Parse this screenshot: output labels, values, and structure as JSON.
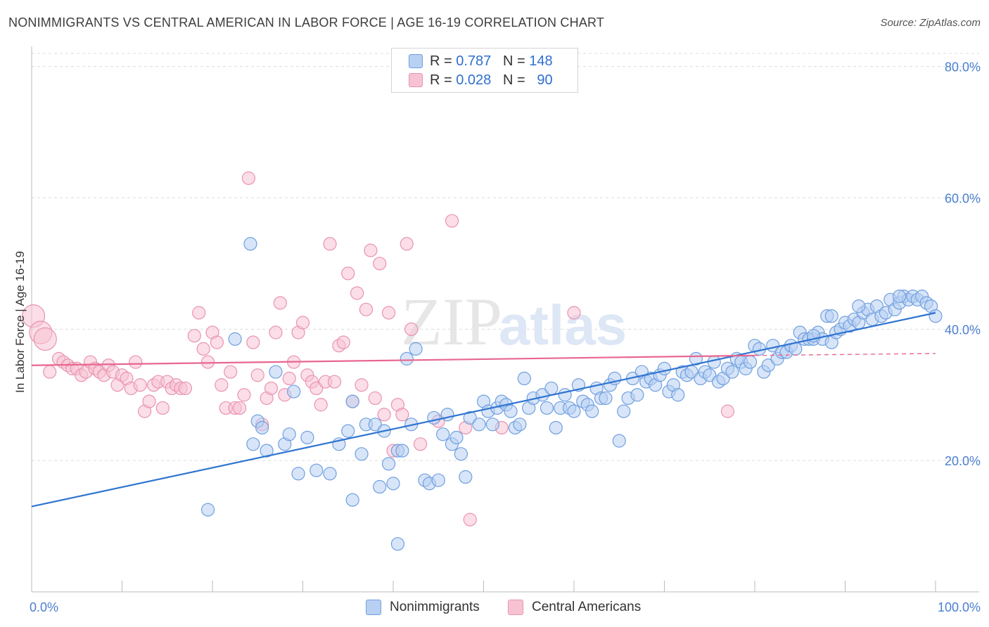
{
  "title": "NONIMMIGRANTS VS CENTRAL AMERICAN IN LABOR FORCE | AGE 16-19 CORRELATION CHART",
  "source": "Source: ZipAtlas.com",
  "watermark": {
    "zip": "ZIP",
    "atlas": "atlas"
  },
  "legend": {
    "rows": [
      {
        "r_label": "R =",
        "r_value": "0.787",
        "n_label": "N =",
        "n_value": "148"
      },
      {
        "r_label": "R =",
        "r_value": "0.028",
        "n_label": "N =",
        "n_value": "90"
      }
    ]
  },
  "colors": {
    "blue_fill": "#b8d0f2",
    "blue_stroke": "#6f9fe0",
    "blue_line": "#2f74d0",
    "pink_fill": "#f7c3d3",
    "pink_stroke": "#e993b0",
    "pink_line": "#e8668f",
    "grid": "#dcdcdc",
    "axis": "#bbbbbb"
  },
  "chart_data": {
    "type": "scatter",
    "title": "NONIMMIGRANTS VS CENTRAL AMERICAN IN LABOR FORCE | AGE 16-19 CORRELATION CHART",
    "xlabel": "",
    "ylabel": "In Labor Force | Age 16-19",
    "xlim": [
      0,
      100
    ],
    "ylim": [
      0,
      82
    ],
    "x_tick_labels": [
      "0.0%",
      "100.0%"
    ],
    "y_ticks": [
      20,
      40,
      60,
      80
    ],
    "y_tick_labels": [
      "20.0%",
      "40.0%",
      "60.0%",
      "80.0%"
    ],
    "grid": true,
    "legend_position": "top-center",
    "series": [
      {
        "name": "Nonimmigrants",
        "r": 0.787,
        "n": 148,
        "trend": {
          "x0": 0,
          "y0": 13.0,
          "x1": 100,
          "y1": 42.5
        },
        "points": [
          [
            19.5,
            12.5
          ],
          [
            22.5,
            38.5
          ],
          [
            24.2,
            53.0
          ],
          [
            25.0,
            26.0
          ],
          [
            25.5,
            25.0
          ],
          [
            24.5,
            22.5
          ],
          [
            26.0,
            21.5
          ],
          [
            27.0,
            33.5
          ],
          [
            28.0,
            22.5
          ],
          [
            28.5,
            24.0
          ],
          [
            29.0,
            30.5
          ],
          [
            29.5,
            18.0
          ],
          [
            30.5,
            23.5
          ],
          [
            31.5,
            18.5
          ],
          [
            33.0,
            18.0
          ],
          [
            34.0,
            22.5
          ],
          [
            35.0,
            24.5
          ],
          [
            35.5,
            14.0
          ],
          [
            35.5,
            29.0
          ],
          [
            36.5,
            21.0
          ],
          [
            37.0,
            25.5
          ],
          [
            38.0,
            25.5
          ],
          [
            38.5,
            16.0
          ],
          [
            39.0,
            24.5
          ],
          [
            39.5,
            19.5
          ],
          [
            40.0,
            16.5
          ],
          [
            40.5,
            21.5
          ],
          [
            41.0,
            21.5
          ],
          [
            41.5,
            35.5
          ],
          [
            42.0,
            25.5
          ],
          [
            42.5,
            37.0
          ],
          [
            43.5,
            17.0
          ],
          [
            44.0,
            16.5
          ],
          [
            44.5,
            26.5
          ],
          [
            45.0,
            17.0
          ],
          [
            45.5,
            24.0
          ],
          [
            46.0,
            27.0
          ],
          [
            46.5,
            22.5
          ],
          [
            47.0,
            23.5
          ],
          [
            47.5,
            21.0
          ],
          [
            48.0,
            17.5
          ],
          [
            48.5,
            26.5
          ],
          [
            49.5,
            25.5
          ],
          [
            50.0,
            29.0
          ],
          [
            50.5,
            27.5
          ],
          [
            51.0,
            25.5
          ],
          [
            51.5,
            28.0
          ],
          [
            52.0,
            29.0
          ],
          [
            52.5,
            28.5
          ],
          [
            53.0,
            27.5
          ],
          [
            53.5,
            25.0
          ],
          [
            54.0,
            25.5
          ],
          [
            54.5,
            32.5
          ],
          [
            55.0,
            28.0
          ],
          [
            55.5,
            29.5
          ],
          [
            56.5,
            30.0
          ],
          [
            57.0,
            28.0
          ],
          [
            57.5,
            31.0
          ],
          [
            58.0,
            25.0
          ],
          [
            58.5,
            28.0
          ],
          [
            59.0,
            30.0
          ],
          [
            59.5,
            28.0
          ],
          [
            60.0,
            27.5
          ],
          [
            60.5,
            31.5
          ],
          [
            61.0,
            29.0
          ],
          [
            61.5,
            28.5
          ],
          [
            62.0,
            27.5
          ],
          [
            62.5,
            31.0
          ],
          [
            63.0,
            29.5
          ],
          [
            63.5,
            29.5
          ],
          [
            64.0,
            31.5
          ],
          [
            64.5,
            32.5
          ],
          [
            65.0,
            23.0
          ],
          [
            65.5,
            27.5
          ],
          [
            66.0,
            29.5
          ],
          [
            66.5,
            32.5
          ],
          [
            67.0,
            30.0
          ],
          [
            67.5,
            33.5
          ],
          [
            68.0,
            32.0
          ],
          [
            68.5,
            32.5
          ],
          [
            69.0,
            31.5
          ],
          [
            69.5,
            33.0
          ],
          [
            70.0,
            34.0
          ],
          [
            70.5,
            30.5
          ],
          [
            71.0,
            31.5
          ],
          [
            71.5,
            30.0
          ],
          [
            72.0,
            33.5
          ],
          [
            72.5,
            33.0
          ],
          [
            73.0,
            33.5
          ],
          [
            73.5,
            35.5
          ],
          [
            74.0,
            32.5
          ],
          [
            74.5,
            33.5
          ],
          [
            75.0,
            33.0
          ],
          [
            75.5,
            35.0
          ],
          [
            76.0,
            32.0
          ],
          [
            76.5,
            32.5
          ],
          [
            77.0,
            34.0
          ],
          [
            77.5,
            33.5
          ],
          [
            78.0,
            35.5
          ],
          [
            78.5,
            35.0
          ],
          [
            79.0,
            34.0
          ],
          [
            79.5,
            35.0
          ],
          [
            80.0,
            37.5
          ],
          [
            80.5,
            37.0
          ],
          [
            81.0,
            33.5
          ],
          [
            81.5,
            34.5
          ],
          [
            82.0,
            37.5
          ],
          [
            82.5,
            35.5
          ],
          [
            83.0,
            36.5
          ],
          [
            83.5,
            36.5
          ],
          [
            84.0,
            37.5
          ],
          [
            84.5,
            37.0
          ],
          [
            85.0,
            39.5
          ],
          [
            85.5,
            38.5
          ],
          [
            86.0,
            38.5
          ],
          [
            86.5,
            38.5
          ],
          [
            87.0,
            39.5
          ],
          [
            87.5,
            38.5
          ],
          [
            88.0,
            42.0
          ],
          [
            88.5,
            38.0
          ],
          [
            89.0,
            39.5
          ],
          [
            89.5,
            40.0
          ],
          [
            90.0,
            41.0
          ],
          [
            90.5,
            40.5
          ],
          [
            91.0,
            41.5
          ],
          [
            91.5,
            41.0
          ],
          [
            92.0,
            42.5
          ],
          [
            92.5,
            43.0
          ],
          [
            93.0,
            41.5
          ],
          [
            93.5,
            43.5
          ],
          [
            94.0,
            42.0
          ],
          [
            94.5,
            42.5
          ],
          [
            95.0,
            44.5
          ],
          [
            95.5,
            43.0
          ],
          [
            96.0,
            44.0
          ],
          [
            96.5,
            45.0
          ],
          [
            97.0,
            44.5
          ],
          [
            97.5,
            45.0
          ],
          [
            98.0,
            44.5
          ],
          [
            98.5,
            45.0
          ],
          [
            99.0,
            44.0
          ],
          [
            99.5,
            43.5
          ],
          [
            100.0,
            42.0
          ],
          [
            91.5,
            43.5
          ],
          [
            96.0,
            45.0
          ],
          [
            40.5,
            7.3
          ],
          [
            88.5,
            42.0
          ],
          [
            86.5,
            39.0
          ]
        ]
      },
      {
        "name": "Central Americans",
        "r": 0.028,
        "n": 90,
        "trend": {
          "x0": 0,
          "y0": 34.5,
          "x1": 80,
          "y1": 36.0,
          "dash_to": {
            "x": 100,
            "y": 36.3
          }
        },
        "points": [
          [
            0.2,
            42.0
          ],
          [
            1.0,
            39.5
          ],
          [
            1.5,
            38.5
          ],
          [
            2.0,
            33.5
          ],
          [
            3.0,
            35.5
          ],
          [
            3.5,
            35.0
          ],
          [
            4.0,
            34.5
          ],
          [
            4.5,
            34.0
          ],
          [
            5.0,
            34.0
          ],
          [
            5.5,
            33.0
          ],
          [
            6.0,
            33.5
          ],
          [
            6.5,
            35.0
          ],
          [
            7.0,
            34.0
          ],
          [
            7.5,
            33.5
          ],
          [
            8.0,
            33.0
          ],
          [
            8.5,
            34.5
          ],
          [
            9.0,
            33.5
          ],
          [
            9.5,
            31.5
          ],
          [
            10.0,
            33.0
          ],
          [
            10.5,
            32.5
          ],
          [
            11.0,
            31.0
          ],
          [
            11.5,
            35.0
          ],
          [
            12.0,
            31.5
          ],
          [
            12.5,
            27.5
          ],
          [
            13.0,
            29.0
          ],
          [
            13.5,
            31.5
          ],
          [
            14.0,
            32.0
          ],
          [
            14.5,
            28.0
          ],
          [
            15.0,
            32.0
          ],
          [
            15.5,
            31.0
          ],
          [
            16.0,
            31.5
          ],
          [
            16.5,
            31.0
          ],
          [
            17.0,
            31.0
          ],
          [
            18.0,
            39.0
          ],
          [
            18.5,
            42.5
          ],
          [
            19.0,
            37.0
          ],
          [
            19.5,
            35.0
          ],
          [
            20.0,
            39.5
          ],
          [
            20.5,
            38.0
          ],
          [
            21.0,
            31.5
          ],
          [
            21.5,
            28.0
          ],
          [
            22.0,
            33.5
          ],
          [
            22.5,
            28.0
          ],
          [
            23.0,
            28.0
          ],
          [
            23.5,
            30.0
          ],
          [
            24.0,
            63.0
          ],
          [
            24.5,
            38.0
          ],
          [
            25.0,
            33.0
          ],
          [
            25.5,
            25.5
          ],
          [
            26.0,
            29.5
          ],
          [
            26.5,
            31.0
          ],
          [
            27.0,
            39.5
          ],
          [
            27.5,
            44.0
          ],
          [
            28.0,
            30.0
          ],
          [
            28.5,
            32.5
          ],
          [
            29.0,
            35.0
          ],
          [
            29.5,
            39.5
          ],
          [
            30.0,
            41.0
          ],
          [
            30.5,
            33.0
          ],
          [
            31.0,
            32.0
          ],
          [
            31.5,
            31.0
          ],
          [
            32.0,
            28.5
          ],
          [
            32.5,
            32.0
          ],
          [
            33.0,
            53.0
          ],
          [
            33.5,
            32.0
          ],
          [
            34.0,
            37.5
          ],
          [
            34.5,
            38.0
          ],
          [
            35.0,
            48.5
          ],
          [
            35.5,
            29.0
          ],
          [
            36.0,
            45.5
          ],
          [
            36.5,
            31.5
          ],
          [
            37.0,
            43.0
          ],
          [
            37.5,
            52.0
          ],
          [
            38.0,
            29.5
          ],
          [
            38.5,
            50.0
          ],
          [
            39.0,
            27.0
          ],
          [
            39.5,
            42.5
          ],
          [
            40.0,
            21.5
          ],
          [
            40.5,
            28.5
          ],
          [
            41.0,
            27.0
          ],
          [
            41.5,
            53.0
          ],
          [
            42.0,
            40.0
          ],
          [
            43.0,
            22.5
          ],
          [
            45.0,
            26.0
          ],
          [
            46.5,
            56.5
          ],
          [
            48.0,
            25.0
          ],
          [
            48.5,
            11.0
          ],
          [
            60.0,
            42.5
          ],
          [
            77.0,
            27.5
          ],
          [
            52.0,
            25.0
          ]
        ]
      }
    ]
  },
  "axis_labels": {
    "ylabel": "In Labor Force | Age 16-19",
    "x_left": "0.0%",
    "x_right": "100.0%"
  },
  "bottom_legend": [
    {
      "label": "Nonimmigrants"
    },
    {
      "label": "Central Americans"
    }
  ]
}
